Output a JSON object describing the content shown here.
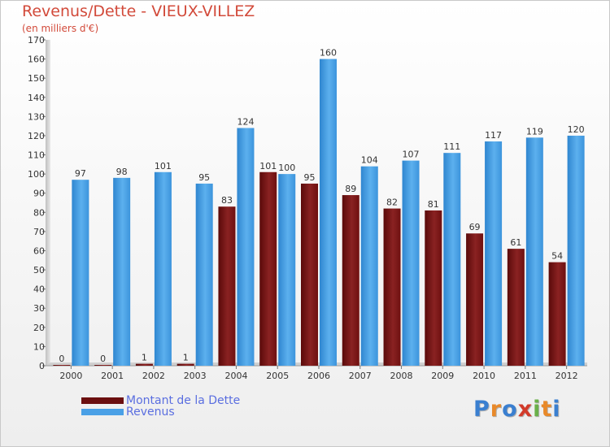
{
  "title": "Revenus/Dette - VIEUX-VILLEZ",
  "subtitle": "(en milliers d'€)",
  "colors": {
    "accent": "#d24a3a",
    "debt": "#7a1414",
    "revenue": "#4aa0e6",
    "legend_text": "#5a6ee0"
  },
  "legend": [
    {
      "label": "Montant de la Dette",
      "color": "#6b0f0f"
    },
    {
      "label": "Revenus",
      "color": "#4aa0e6"
    }
  ],
  "logo": {
    "text": "Proxiti",
    "letter_colors": [
      "#3a7fd0",
      "#e8892a",
      "#3a7fd0",
      "#d23a2a",
      "#6ab04a",
      "#e8892a",
      "#3a7fd0"
    ]
  },
  "chart_data": {
    "type": "bar",
    "title": "Revenus/Dette - VIEUX-VILLEZ",
    "subtitle": "(en milliers d'€)",
    "categories": [
      "2000",
      "2001",
      "2002",
      "2003",
      "2004",
      "2005",
      "2006",
      "2007",
      "2008",
      "2009",
      "2010",
      "2011",
      "2012"
    ],
    "series": [
      {
        "name": "Montant de la Dette",
        "values": [
          0,
          0,
          1,
          1,
          83,
          101,
          95,
          89,
          82,
          81,
          69,
          61,
          54
        ]
      },
      {
        "name": "Revenus",
        "values": [
          97,
          98,
          101,
          95,
          124,
          100,
          160,
          104,
          107,
          111,
          117,
          119,
          120
        ]
      }
    ],
    "ylim": [
      0,
      170
    ],
    "yticks": [
      0,
      10,
      20,
      30,
      40,
      50,
      60,
      70,
      80,
      90,
      100,
      110,
      120,
      130,
      140,
      150,
      160,
      170
    ],
    "grid": false,
    "legend_position": "bottom-left"
  }
}
